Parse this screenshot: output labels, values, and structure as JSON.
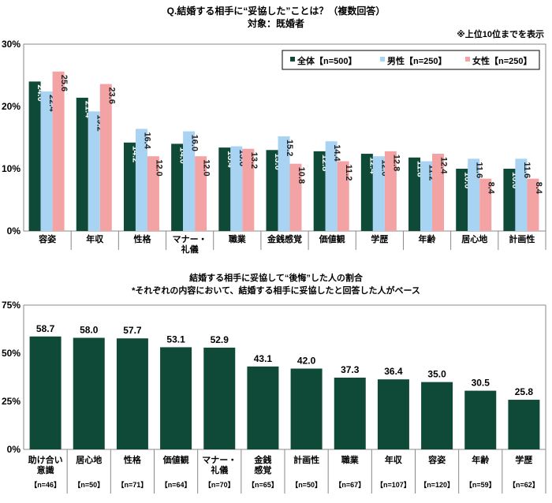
{
  "colors": {
    "all": "#0e4a37",
    "male": "#a9d3f3",
    "female": "#f3a3a3",
    "axis": "#888888"
  },
  "chart_data": [
    {
      "type": "bar",
      "title": "Q.結婚する相手に“妥協した”ことは？（複数回答）",
      "subtitle": "対象：既婚者",
      "note": "※上位10位までを表示",
      "categories": [
        "容姿",
        "年収",
        "性格",
        "マナー・\n礼儀",
        "職業",
        "金銭感覚",
        "価値観",
        "学歴",
        "年齢",
        "居心地",
        "計画性"
      ],
      "series": [
        {
          "name": "全体【n=500】",
          "values": [
            24.0,
            21.4,
            14.2,
            14.0,
            13.4,
            13.0,
            12.8,
            12.4,
            11.8,
            10.0,
            10.0
          ]
        },
        {
          "name": "男性【n=250】",
          "values": [
            22.4,
            19.2,
            16.4,
            16.0,
            13.6,
            15.2,
            14.4,
            12.0,
            11.2,
            11.6,
            11.6
          ]
        },
        {
          "name": "女性【n=250】",
          "values": [
            25.6,
            23.6,
            12.0,
            12.0,
            13.2,
            10.8,
            11.2,
            12.8,
            12.4,
            8.4,
            8.4
          ]
        }
      ],
      "yticks": [
        "0%",
        "10%",
        "20%",
        "30%"
      ],
      "ylim": [
        0,
        30
      ],
      "grid": false,
      "legend": "top-right"
    },
    {
      "type": "bar",
      "title": "結婚する相手に妥協して“後悔”した人の割合",
      "subtitle": "*それぞれの内容において、結婚する相手に妥協したと回答した人がベース",
      "categories": [
        "助け合い\n意識",
        "居心地",
        "性格",
        "価値観",
        "マナー・\n礼儀",
        "金銭\n感覚",
        "計画性",
        "職業",
        "年収",
        "容姿",
        "年齢",
        "学歴"
      ],
      "n_labels": [
        "【n=46】",
        "【n=50】",
        "【n=71】",
        "【n=64】",
        "【n=70】",
        "【n=65】",
        "【n=50】",
        "【n=67】",
        "【n=107】",
        "【n=120】",
        "【n=59】",
        "【n=62】"
      ],
      "values": [
        58.7,
        58.0,
        57.7,
        53.1,
        52.9,
        43.1,
        42.0,
        37.3,
        36.4,
        35.0,
        30.5,
        25.8
      ],
      "yticks": [
        "0%",
        "25%",
        "50%",
        "75%"
      ],
      "ylim": [
        0,
        75
      ],
      "grid": false
    }
  ]
}
